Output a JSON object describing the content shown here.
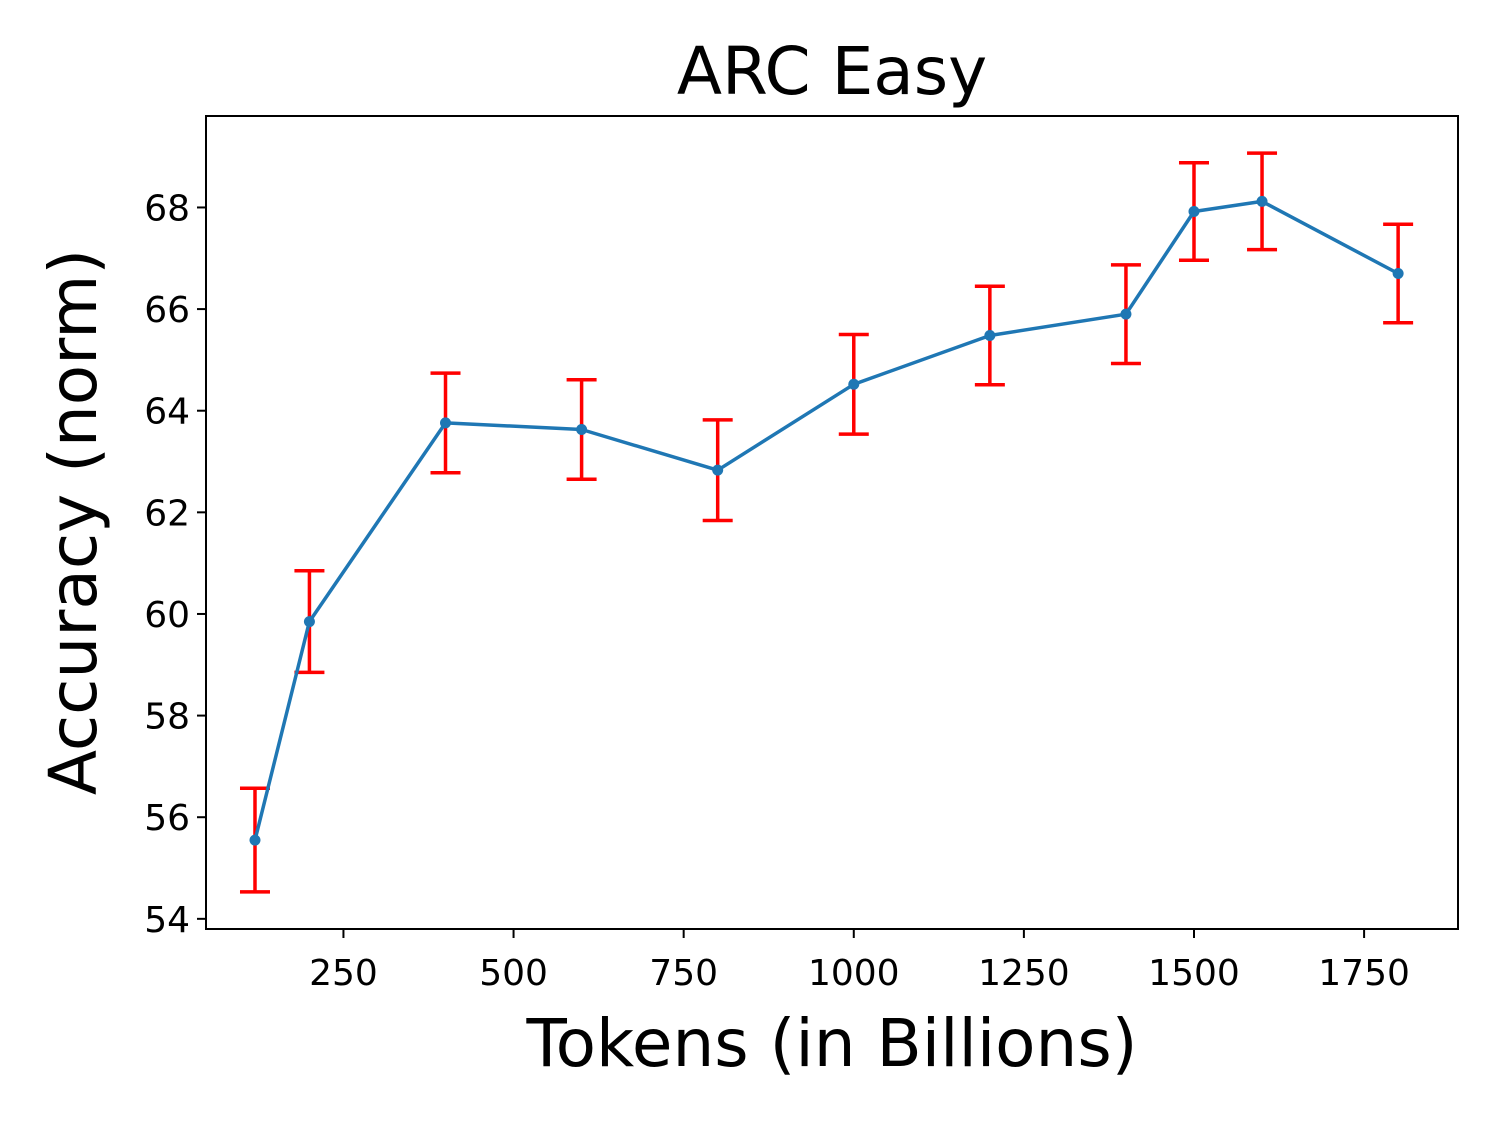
{
  "chart_data": {
    "type": "line",
    "title": "ARC Easy",
    "xlabel": "Tokens (in Billions)",
    "ylabel": "Accuracy (norm)",
    "xlim": [
      48,
      1888
    ],
    "ylim": [
      53.8,
      69.8
    ],
    "x_ticks": [
      250,
      500,
      750,
      1000,
      1250,
      1500,
      1750
    ],
    "y_ticks": [
      54,
      56,
      58,
      60,
      62,
      64,
      66,
      68
    ],
    "grid": false,
    "series": [
      {
        "x": [
          120,
          200,
          400,
          600,
          800,
          1000,
          1200,
          1400,
          1500,
          1600,
          1800
        ],
        "y": [
          55.55,
          59.85,
          63.76,
          63.63,
          62.83,
          64.52,
          65.48,
          65.9,
          67.92,
          68.12,
          66.7
        ],
        "error": [
          1.02,
          1.0,
          0.98,
          0.98,
          0.99,
          0.98,
          0.97,
          0.97,
          0.96,
          0.95,
          0.97
        ],
        "color": "#1f77b4",
        "error_color": "#ff0000"
      }
    ]
  }
}
